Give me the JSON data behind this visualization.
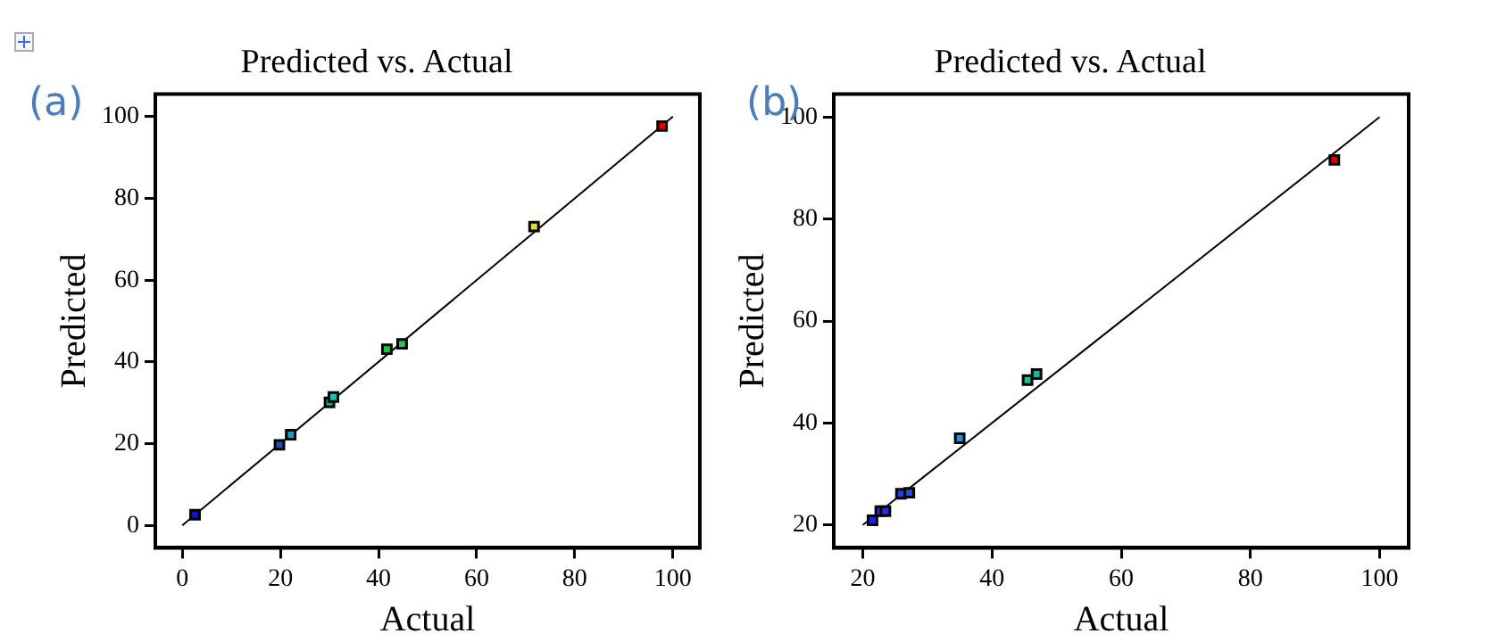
{
  "chart_data": [
    {
      "type": "scatter",
      "title": "Predicted vs. Actual",
      "xlabel": "Actual",
      "ylabel": "Predicted",
      "annotations": [
        "(a)"
      ],
      "marker": "square",
      "xlim": [
        -5.5,
        105.5
      ],
      "ylim": [
        -5.5,
        105.5
      ],
      "xticks": [
        0,
        20,
        40,
        60,
        80,
        100
      ],
      "yticks": [
        0,
        20,
        40,
        60,
        80,
        100
      ],
      "series": [
        {
          "x": [
            2.6,
            19.8,
            22.1,
            30.0,
            30.8,
            41.7,
            44.8,
            71.7,
            97.8
          ],
          "values": [
            2.6,
            19.7,
            22.2,
            30.1,
            31.4,
            43.1,
            44.4,
            73.1,
            97.7
          ],
          "colors": [
            "#1010d0",
            "#2050b0",
            "#3090c0",
            "#20a080",
            "#20c0b0",
            "#20c040",
            "#30c060",
            "#e0e020",
            "#e00000"
          ]
        },
        {
          "type": "line",
          "marker": "none",
          "x": [
            0,
            100
          ],
          "values": [
            0,
            100
          ],
          "color": "#000000"
        }
      ]
    },
    {
      "type": "scatter",
      "title": "Predicted vs. Actual",
      "xlabel": "Actual",
      "ylabel": "Predicted",
      "annotations": [
        "(b)"
      ],
      "marker": "square",
      "xlim": [
        15.5,
        104.5
      ],
      "ylim": [
        15.5,
        104.5
      ],
      "xticks": [
        20,
        40,
        60,
        80,
        100
      ],
      "yticks": [
        20,
        40,
        60,
        80,
        100
      ],
      "series": [
        {
          "x": [
            21.5,
            22.7,
            23.5,
            25.9,
            27.2,
            35.0,
            45.5,
            46.9,
            93.0
          ],
          "values": [
            20.9,
            22.7,
            22.7,
            26.1,
            26.3,
            37.0,
            48.4,
            49.6,
            91.6
          ],
          "colors": [
            "#2020e0",
            "#2030e0",
            "#2030e0",
            "#2040e0",
            "#2050e0",
            "#2090e0",
            "#20c080",
            "#20b0a0",
            "#e00000"
          ]
        },
        {
          "type": "line",
          "marker": "none",
          "x": [
            20,
            100
          ],
          "values": [
            20,
            100
          ],
          "color": "#000000"
        }
      ]
    }
  ]
}
